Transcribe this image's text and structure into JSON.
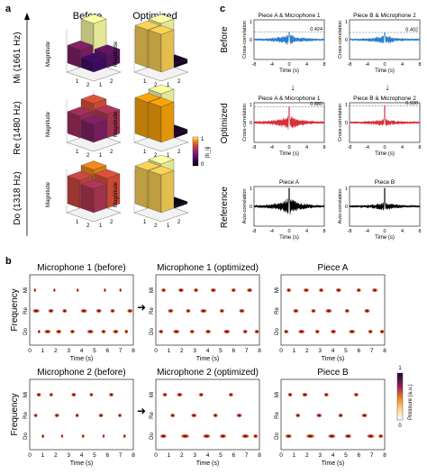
{
  "panels": {
    "a": {
      "letter": "a",
      "col_titles": [
        "Before",
        "Optimized"
      ],
      "rows": [
        {
          "label": "Mi (1661 Hz)",
          "bars_before": [
            1.0,
            0.45,
            0.35,
            0.25
          ],
          "bars_opt": [
            1.0,
            0.95,
            0.1,
            0.95
          ]
        },
        {
          "label": "Re (1480 Hz)",
          "bars_before": [
            0.75,
            0.55,
            0.6,
            0.45
          ],
          "bars_opt": [
            1.0,
            0.9,
            0.1,
            0.9
          ]
        },
        {
          "label": "Do (1318 Hz)",
          "bars_before": [
            0.85,
            0.7,
            0.75,
            0.6
          ],
          "bars_opt": [
            1.0,
            0.95,
            0.05,
            0.95
          ]
        }
      ],
      "zlabel": "Magnitude",
      "axis_ticks": [
        "1",
        "2",
        "1",
        "2"
      ],
      "colorbar": {
        "label": "|h_ij|",
        "max": "1",
        "min": "0"
      },
      "colors": {
        "low": "#1a0a3a",
        "mid": "#c23b5a",
        "high": "#fff3a8"
      }
    },
    "c": {
      "letter": "c",
      "row_labels": [
        "Before",
        "Optimized",
        "Reference"
      ],
      "plots": [
        {
          "title": "Piece A & Microphone 1",
          "ylabel": "Cross-correlation",
          "value": "0.424",
          "color": "#2e7fcf",
          "peak": 0.42,
          "noise": 0.28
        },
        {
          "title": "Piece B & Microphone 2",
          "ylabel": "Cross-correlation",
          "value": "0.402",
          "color": "#2e7fcf",
          "peak": 0.4,
          "noise": 0.22
        },
        {
          "title": "Piece A & Microphone 1",
          "ylabel": "Cross-correlation",
          "value": "0.880",
          "color": "#d6303a",
          "peak": 0.88,
          "noise": 0.4
        },
        {
          "title": "Piece B & Microphone 2",
          "ylabel": "Cross-correlation",
          "value": "0.930",
          "color": "#d6303a",
          "peak": 0.93,
          "noise": 0.18
        },
        {
          "title": "Piece A",
          "ylabel": "Auto-correlation",
          "value": "",
          "color": "#000000",
          "peak": 1.0,
          "noise": 0.45
        },
        {
          "title": "Piece B",
          "ylabel": "Auto-correlation",
          "value": "",
          "color": "#000000",
          "peak": 1.0,
          "noise": 0.2
        }
      ],
      "xlabel": "Time (s)",
      "xticks": [
        "-8",
        "-4",
        "0",
        "4",
        "8"
      ],
      "yticks": [
        "1",
        "0"
      ]
    },
    "b": {
      "letter": "b",
      "ylabel": "Frequency",
      "xlabel": "Time (s)",
      "xticks": [
        "0",
        "1",
        "2",
        "3",
        "4",
        "5",
        "6",
        "7",
        "8"
      ],
      "notes": [
        "Mi",
        "Re",
        "Do"
      ],
      "plots": [
        {
          "title": "Microphone 1 (before)",
          "notes": [
            [
              0,
              0.3,
              0.05
            ],
            [
              0,
              1.8,
              0.04
            ],
            [
              0,
              3.6,
              0.05
            ],
            [
              0,
              5.7,
              0.04
            ],
            [
              0,
              6.9,
              0.05
            ],
            [
              1,
              0.2,
              0.15
            ],
            [
              1,
              1.4,
              0.12
            ],
            [
              1,
              2.5,
              0.1
            ],
            [
              1,
              3.9,
              0.14
            ],
            [
              1,
              5.1,
              0.12
            ],
            [
              1,
              6.2,
              0.1
            ],
            [
              1,
              7.5,
              0.12
            ],
            [
              2,
              0.6,
              0.06
            ],
            [
              2,
              1.1,
              0.14
            ],
            [
              2,
              2.0,
              0.12
            ],
            [
              2,
              3.1,
              0.1
            ],
            [
              2,
              4.4,
              0.14
            ],
            [
              2,
              5.5,
              0.1
            ],
            [
              2,
              6.4,
              0.12
            ],
            [
              2,
              7.3,
              0.08
            ]
          ]
        },
        {
          "title": "Microphone 1 (optimized)",
          "notes": [
            [
              0,
              0.4,
              0.1
            ],
            [
              0,
              1.7,
              0.12
            ],
            [
              0,
              2.9,
              0.1
            ],
            [
              0,
              4.2,
              0.12
            ],
            [
              0,
              5.8,
              0.1
            ],
            [
              0,
              7.0,
              0.12
            ],
            [
              1,
              0.9,
              0.12
            ],
            [
              1,
              2.3,
              0.1
            ],
            [
              1,
              3.4,
              0.14
            ],
            [
              1,
              4.9,
              0.1
            ],
            [
              1,
              6.4,
              0.12
            ],
            [
              2,
              0.2,
              0.1
            ],
            [
              2,
              1.3,
              0.14
            ],
            [
              2,
              2.6,
              0.1
            ],
            [
              2,
              3.8,
              0.12
            ],
            [
              2,
              5.2,
              0.14
            ],
            [
              2,
              6.7,
              0.1
            ],
            [
              2,
              7.6,
              0.1
            ]
          ]
        },
        {
          "title": "Piece A",
          "notes": [
            [
              0,
              0.4,
              0.1
            ],
            [
              0,
              1.7,
              0.12
            ],
            [
              0,
              2.9,
              0.1
            ],
            [
              0,
              4.2,
              0.12
            ],
            [
              0,
              5.8,
              0.1
            ],
            [
              0,
              7.0,
              0.12
            ],
            [
              1,
              0.9,
              0.12
            ],
            [
              1,
              2.3,
              0.1
            ],
            [
              1,
              3.4,
              0.14
            ],
            [
              1,
              4.9,
              0.1
            ],
            [
              1,
              6.4,
              0.12
            ],
            [
              2,
              0.2,
              0.1
            ],
            [
              2,
              1.3,
              0.14
            ],
            [
              2,
              2.6,
              0.1
            ],
            [
              2,
              3.8,
              0.12
            ],
            [
              2,
              5.2,
              0.14
            ],
            [
              2,
              6.7,
              0.1
            ],
            [
              2,
              7.6,
              0.1
            ]
          ]
        },
        {
          "title": "Microphone 2 (before)",
          "notes": [
            [
              0,
              0.5,
              0.1
            ],
            [
              0,
              1.5,
              0.08
            ],
            [
              0,
              3.2,
              0.1
            ],
            [
              0,
              4.6,
              0.08
            ],
            [
              0,
              6.1,
              0.1
            ],
            [
              1,
              0.3,
              0.08
            ],
            [
              1,
              1.9,
              0.1
            ],
            [
              1,
              3.5,
              0.08
            ],
            [
              1,
              5.3,
              0.1
            ],
            [
              1,
              6.8,
              0.08
            ],
            [
              2,
              0.9,
              0.06
            ],
            [
              2,
              2.4,
              0.05
            ],
            [
              2,
              4.0,
              0.06
            ],
            [
              2,
              5.6,
              0.05
            ],
            [
              2,
              7.2,
              0.06
            ]
          ]
        },
        {
          "title": "Microphone 2 (optimized)",
          "notes": [
            [
              0,
              0.5,
              0.1
            ],
            [
              0,
              1.6,
              0.12
            ],
            [
              0,
              3.3,
              0.1
            ],
            [
              0,
              5.6,
              0.1
            ],
            [
              1,
              1.1,
              0.1
            ],
            [
              1,
              2.7,
              0.12
            ],
            [
              1,
              4.4,
              0.1
            ],
            [
              1,
              6.2,
              0.12
            ],
            [
              2,
              0.3,
              0.14
            ],
            [
              2,
              1.9,
              0.18
            ],
            [
              2,
              3.6,
              0.16
            ],
            [
              2,
              4.9,
              0.14
            ],
            [
              2,
              6.6,
              0.16
            ],
            [
              2,
              7.5,
              0.1
            ]
          ]
        },
        {
          "title": "Piece B",
          "notes": [
            [
              0,
              0.5,
              0.1
            ],
            [
              0,
              1.6,
              0.12
            ],
            [
              0,
              3.3,
              0.1
            ],
            [
              0,
              5.6,
              0.1
            ],
            [
              1,
              1.1,
              0.1
            ],
            [
              1,
              2.7,
              0.12
            ],
            [
              1,
              4.4,
              0.1
            ],
            [
              1,
              6.2,
              0.12
            ],
            [
              2,
              0.3,
              0.14
            ],
            [
              2,
              1.9,
              0.18
            ],
            [
              2,
              3.6,
              0.16
            ],
            [
              2,
              4.9,
              0.14
            ],
            [
              2,
              6.6,
              0.16
            ],
            [
              2,
              7.5,
              0.1
            ]
          ]
        }
      ],
      "colorbar": {
        "label": "Pressure (a.u.)",
        "max": "1",
        "min": "0"
      }
    }
  }
}
